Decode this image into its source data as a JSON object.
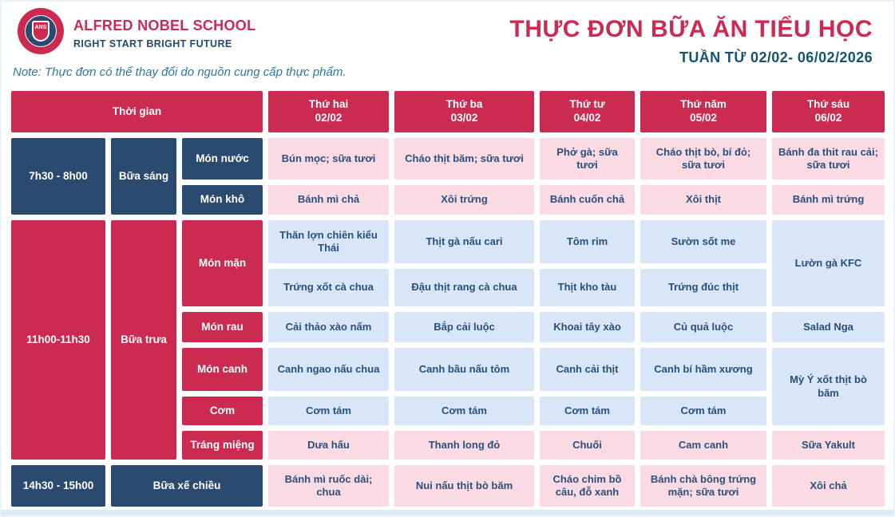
{
  "brand": {
    "school_name": "ALFRED NOBEL SCHOOL",
    "tagline": "RIGHT START  BRIGHT FUTURE",
    "logo_abbr": "ANS"
  },
  "header": {
    "title": "THỰC ĐƠN BỮA ĂN TIỂU HỌC",
    "subtitle": "TUẦN TỪ 02/02- 06/02/2026",
    "note": "Note: Thực đơn có thể thay đổi do nguồn cung cấp thực phẩm."
  },
  "colors": {
    "brand_red": "#cb2b51",
    "navy": "#2b4a70",
    "pink_cell": "#fadbe3",
    "blue_cell": "#d8e6f8",
    "dish_text": "#2b4f7d",
    "subtitle_text": "#14546e",
    "note_text": "#2e78a0"
  },
  "table": {
    "time_header": "Thời gian",
    "days": [
      {
        "label": "Thứ hai",
        "date": "02/02"
      },
      {
        "label": "Thứ ba",
        "date": "03/02"
      },
      {
        "label": "Thứ tư",
        "date": "04/02"
      },
      {
        "label": "Thứ năm",
        "date": "05/02"
      },
      {
        "label": "Thứ sáu",
        "date": "06/02"
      }
    ]
  },
  "menu": {
    "breakfast": {
      "time": "7h30 - 8h00",
      "meal": "Bữa sáng",
      "mon_nuoc": {
        "label": "Món nước",
        "dishes": [
          "Bún mọc; sữa tươi",
          "Cháo thịt băm; sữa tươi",
          "Phở gà; sữa tươi",
          "Cháo thịt bò, bí đỏ; sữa tươi",
          "Bánh đa thit rau cải; sữa tươi"
        ]
      },
      "mon_kho": {
        "label": "Món khô",
        "dishes": [
          "Bánh mì chả",
          "Xôi trứng",
          "Bánh cuốn chả",
          "Xôi thịt",
          "Bánh mì trứng"
        ]
      }
    },
    "lunch": {
      "time": "11h00-11h30",
      "meal": "Bữa trưa",
      "mon_man": {
        "label": "Món mặn",
        "row1": [
          "Thăn lợn chiên kiểu Thái",
          "Thịt gà nấu cari",
          "Tôm rim",
          "Sườn sốt me"
        ],
        "row2": [
          "Trứng xốt cà chua",
          "Đậu thịt rang cà chua",
          "Thịt kho tàu",
          "Trứng đúc thịt"
        ],
        "friday": "Lườn gà KFC"
      },
      "mon_rau": {
        "label": "Món rau",
        "dishes": [
          "Cải thảo xào nấm",
          "Bắp cải luộc",
          "Khoai tây xào",
          "Củ quả luộc",
          "Salad Nga"
        ]
      },
      "mon_canh": {
        "label": "Món canh",
        "dishes": [
          "Canh ngao nấu chua",
          "Canh bầu nấu tôm",
          "Canh cải thịt",
          "Canh bí hầm xương"
        ],
        "friday": "Mỳ Ý xốt thịt bò băm"
      },
      "com": {
        "label": "Cơm",
        "dishes": [
          "Cơm tám",
          "Cơm tám",
          "Cơm tám",
          "Cơm tám"
        ]
      },
      "trang_mieng": {
        "label": "Tráng miệng",
        "dishes": [
          "Dưa hấu",
          "Thanh long đỏ",
          "Chuối",
          "Cam canh",
          "Sữa Yakult"
        ]
      }
    },
    "afternoon": {
      "time": "14h30 - 15h00",
      "meal": "Bữa xế chiều",
      "dishes": [
        "Bánh mì ruốc dài; chua",
        "Nui nấu thịt bò băm",
        "Cháo chim bồ câu, đỗ xanh",
        "Bánh chà bông trứng mặn; sữa tươi",
        "Xôi chả"
      ]
    }
  }
}
